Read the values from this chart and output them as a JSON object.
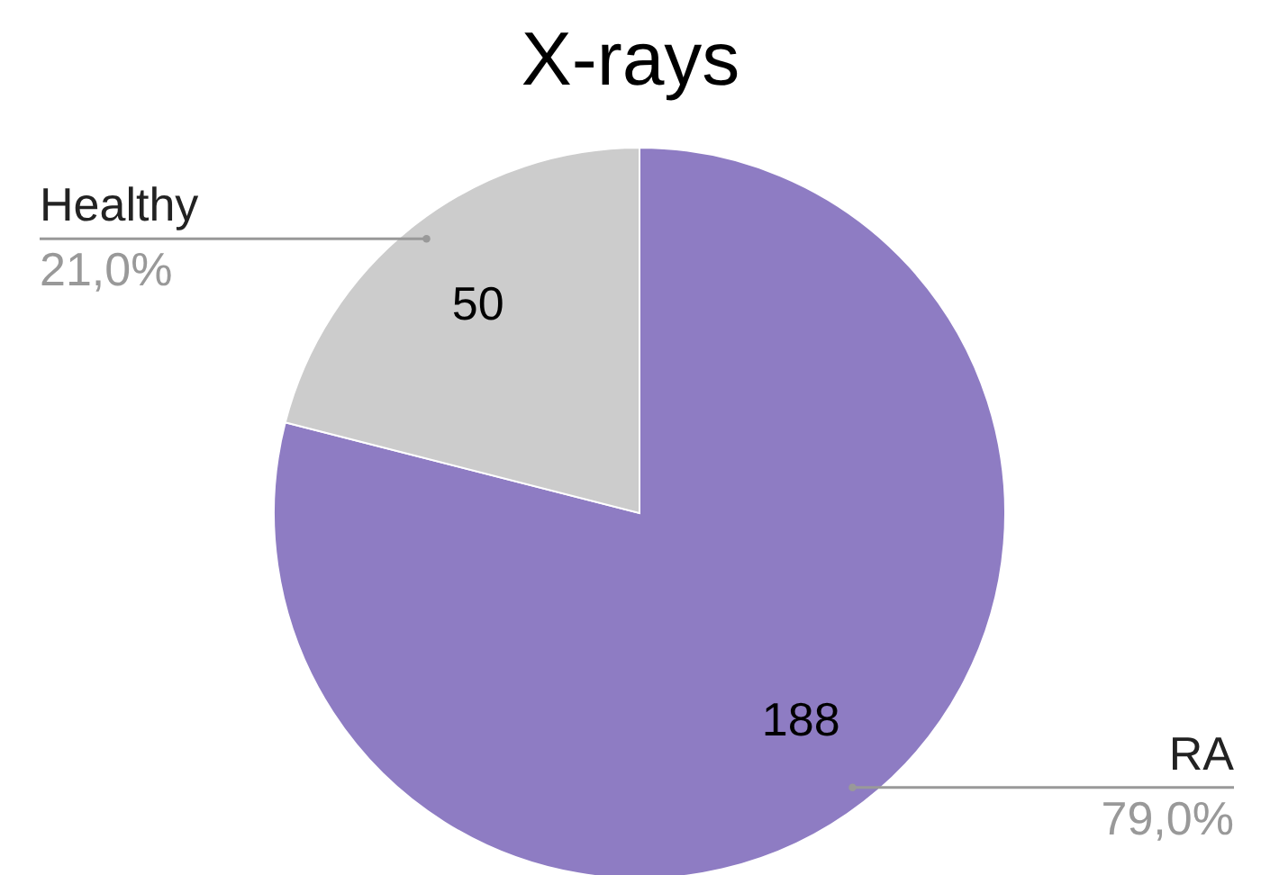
{
  "chart_data": {
    "type": "pie",
    "title": "X-rays",
    "categories": [
      "RA",
      "Healthy"
    ],
    "values": [
      188,
      50
    ],
    "colors": [
      "#8e7cc3",
      "#cccccc"
    ],
    "data_labels": true,
    "annotations": [
      "79,0%",
      "21,0%"
    ]
  }
}
